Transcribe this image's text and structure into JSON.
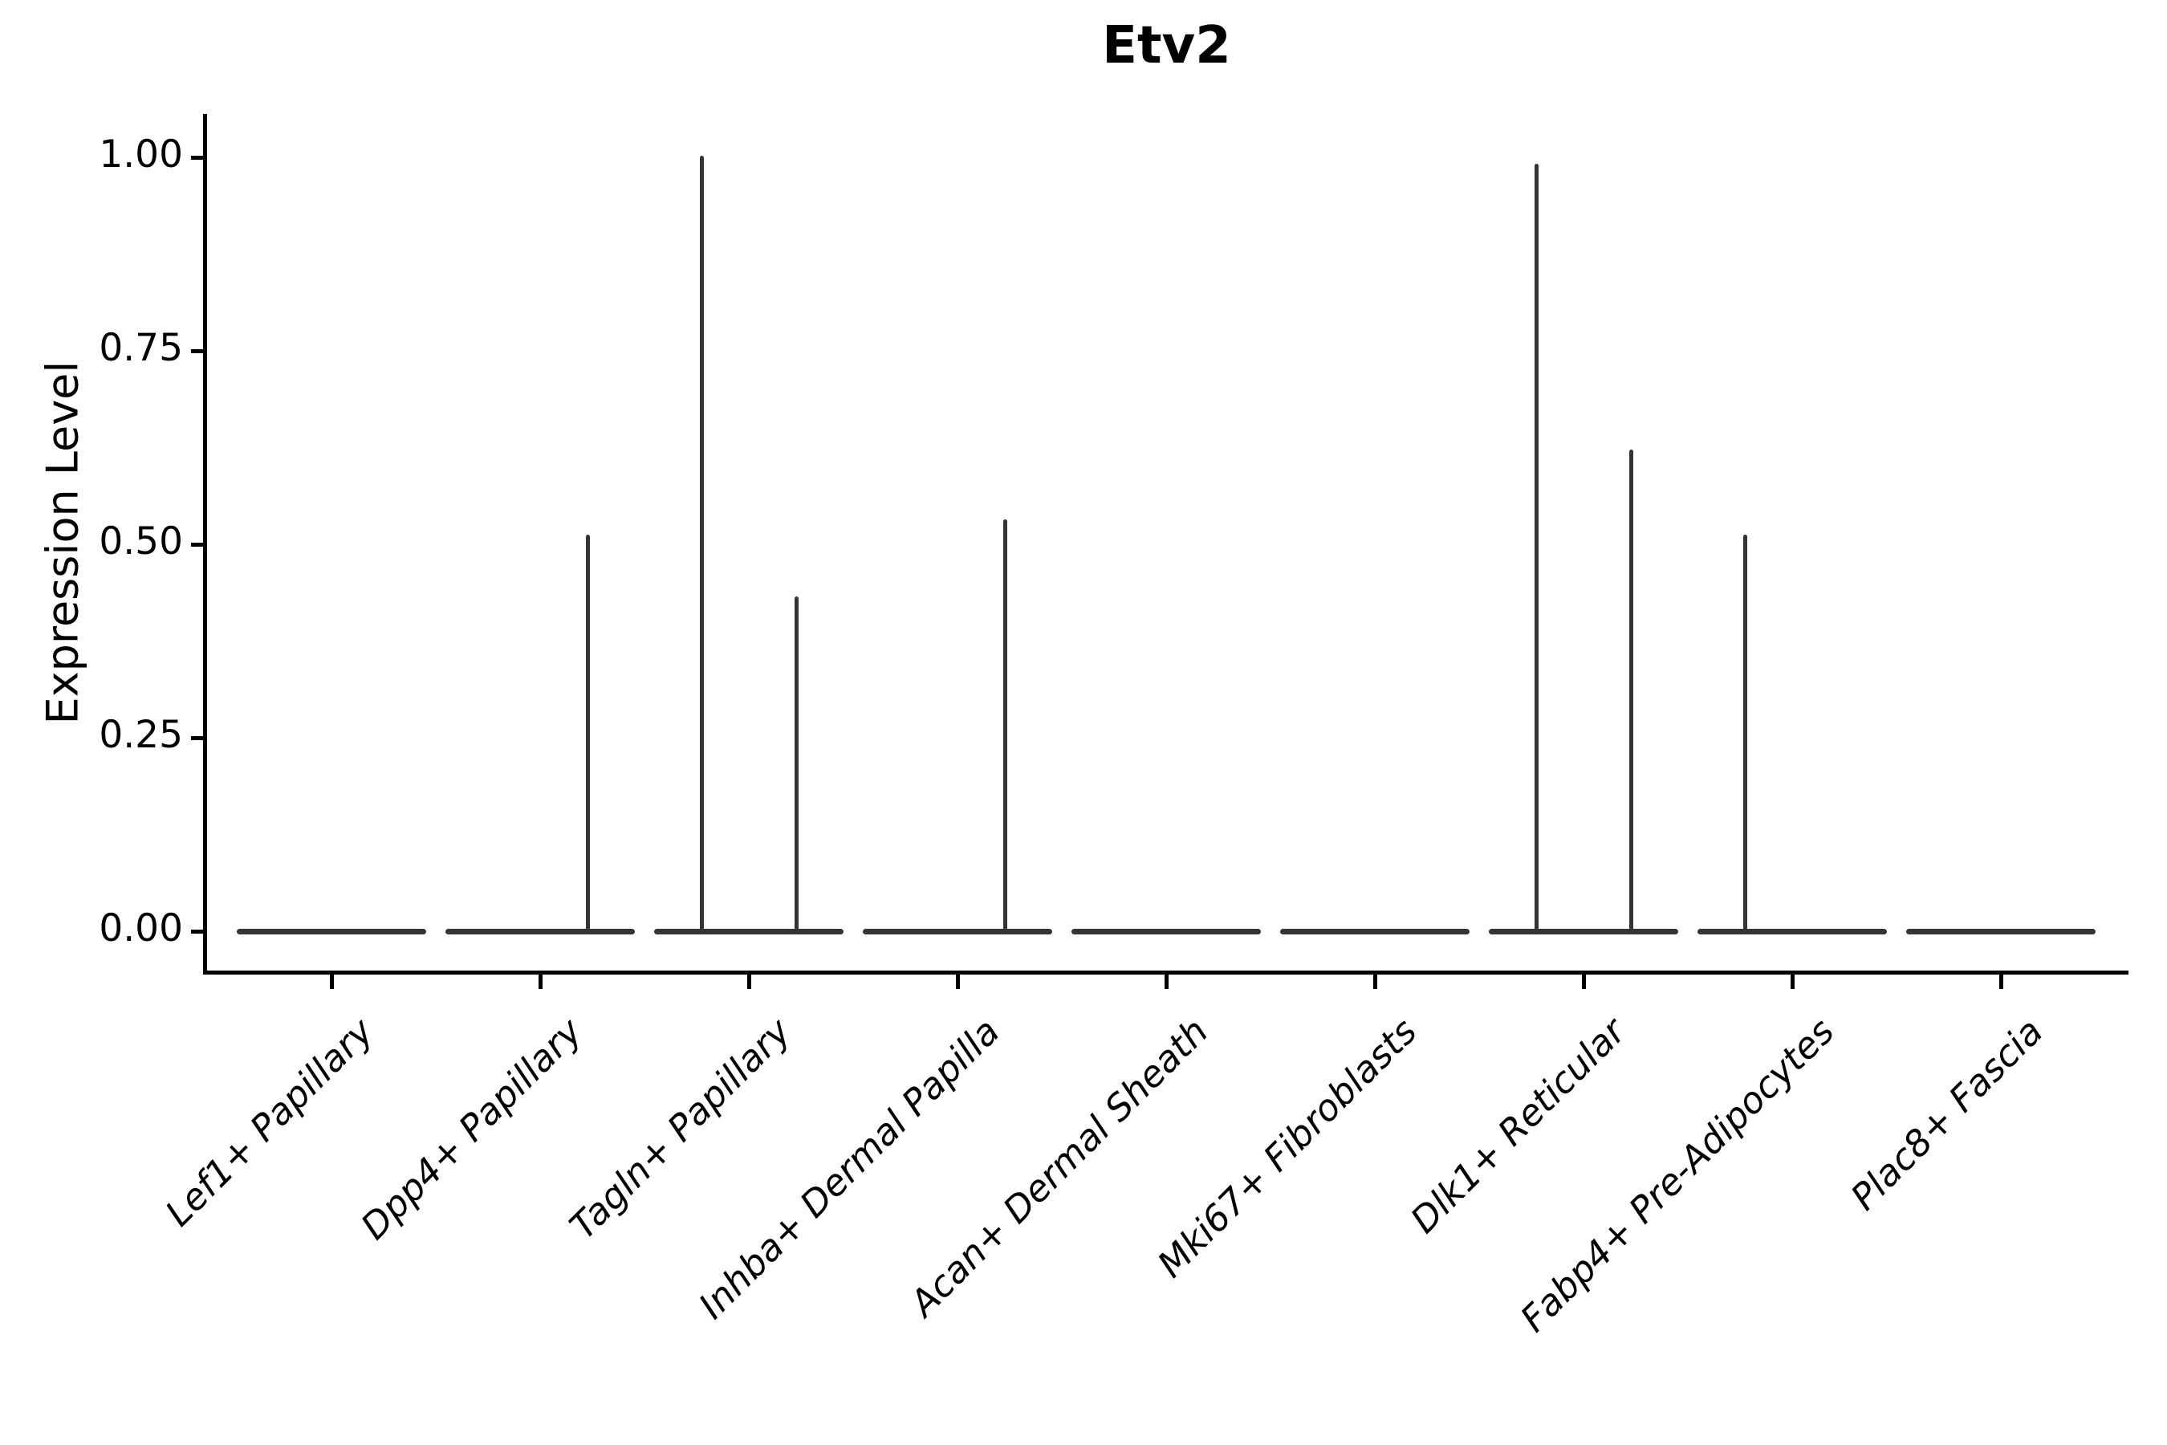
{
  "title": "Etv2",
  "ylabel": "Expression Level",
  "colors": {
    "stroke": "#343434",
    "axis": "#000000",
    "text": "#000000",
    "background": "#ffffff"
  },
  "chart_data": {
    "type": "violin",
    "title": "Etv2",
    "xlabel": "",
    "ylabel": "Expression Level",
    "ylim": [
      0,
      1.05
    ],
    "yticks": [
      0,
      0.25,
      0.5,
      0.75,
      1.0
    ],
    "ytick_labels": [
      "0.00",
      "0.25",
      "0.50",
      "0.75",
      "1.00"
    ],
    "x_rotation_deg": 45,
    "grid": false,
    "legend": null,
    "categories": [
      "Lef1+ Papillary",
      "Dpp4+ Papillary",
      "Tagln+ Papillary",
      "Inhba+ Dermal Papilla",
      "Acan+ Dermal Sheath",
      "Mki67+ Fibroblasts",
      "Dlk1+ Reticular",
      "Fabp4+ Pre-Adipocytes",
      "Plac8+ Fascia"
    ],
    "violins": [
      {
        "category": "Lef1+ Papillary",
        "base_value": 0.0,
        "spikes": []
      },
      {
        "category": "Dpp4+ Papillary",
        "base_value": 0.0,
        "spikes": [
          {
            "side": "right",
            "max_value": 0.51
          }
        ]
      },
      {
        "category": "Tagln+ Papillary",
        "base_value": 0.0,
        "spikes": [
          {
            "side": "left",
            "max_value": 1.0
          },
          {
            "side": "right",
            "max_value": 0.43
          }
        ]
      },
      {
        "category": "Inhba+ Dermal Papilla",
        "base_value": 0.0,
        "spikes": [
          {
            "side": "right",
            "max_value": 0.53
          }
        ]
      },
      {
        "category": "Acan+ Dermal Sheath",
        "base_value": 0.0,
        "spikes": []
      },
      {
        "category": "Mki67+ Fibroblasts",
        "base_value": 0.0,
        "spikes": []
      },
      {
        "category": "Dlk1+ Reticular",
        "base_value": 0.0,
        "spikes": [
          {
            "side": "left",
            "max_value": 0.99
          },
          {
            "side": "right",
            "max_value": 0.62
          }
        ]
      },
      {
        "category": "Fabp4+ Pre-Adipocytes",
        "base_value": 0.0,
        "spikes": [
          {
            "side": "left",
            "max_value": 0.51
          }
        ]
      },
      {
        "category": "Plac8+ Fascia",
        "base_value": 0.0,
        "spikes": []
      }
    ]
  }
}
